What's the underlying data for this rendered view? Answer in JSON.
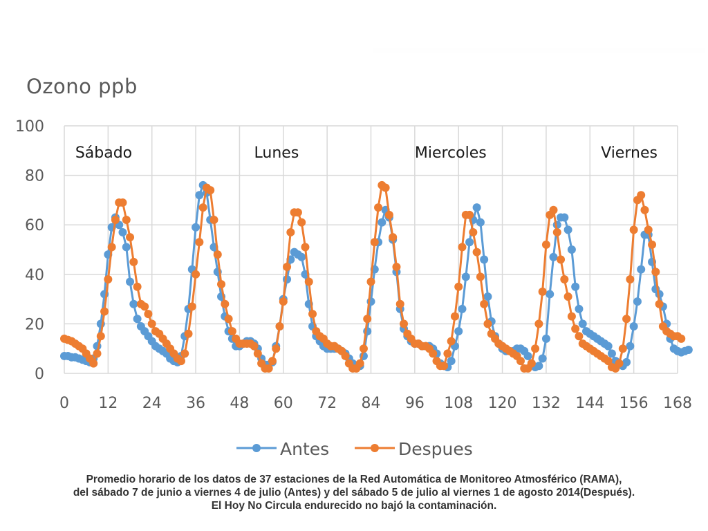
{
  "chart_data": {
    "type": "line",
    "title": "Ozono ppb",
    "xlabel": "",
    "ylabel": "Ozono ppb",
    "xlim": [
      0,
      168
    ],
    "ylim": [
      0,
      100
    ],
    "x_ticks": [
      0,
      12,
      24,
      36,
      48,
      60,
      72,
      84,
      96,
      108,
      120,
      132,
      144,
      156,
      168
    ],
    "y_ticks": [
      0,
      20,
      40,
      60,
      80,
      100
    ],
    "grid": true,
    "legend": "bottom",
    "annotations": [
      {
        "text": "Sábado",
        "x": 3
      },
      {
        "text": "Lunes",
        "x": 52
      },
      {
        "text": "Miercoles",
        "x": 96
      },
      {
        "text": "Viernes",
        "x": 147
      }
    ],
    "series": [
      {
        "name": "Antes",
        "color": "#5b9bd5",
        "values": [
          7,
          7,
          6.5,
          6.5,
          6,
          5.5,
          5,
          4.5,
          6,
          11,
          20,
          32,
          48,
          59,
          63,
          60,
          57,
          51,
          37,
          28,
          22,
          19,
          17,
          15,
          13,
          11,
          10,
          9,
          8,
          6,
          5,
          4.5,
          7,
          15,
          26,
          42,
          59,
          72,
          76,
          73,
          62,
          51,
          41,
          31,
          23,
          17,
          14,
          11,
          11,
          12,
          13,
          13,
          12,
          10,
          6,
          3.5,
          3.5,
          4.5,
          11,
          19,
          30,
          38,
          46,
          49,
          48,
          47,
          40,
          28,
          19,
          15,
          13,
          11,
          10,
          10,
          10,
          10,
          9,
          8,
          6,
          4,
          3,
          3,
          7,
          17,
          29,
          42,
          53,
          61,
          66,
          63,
          54,
          41,
          26,
          18,
          15,
          13,
          12,
          12,
          11,
          11,
          11,
          10,
          8,
          4,
          3,
          2.5,
          5,
          11,
          17,
          26,
          39,
          53,
          62,
          67,
          61,
          46,
          31,
          21,
          15,
          12,
          10,
          9,
          9,
          9,
          10,
          10,
          9,
          7,
          4,
          2.5,
          3,
          6,
          14,
          32,
          47,
          60,
          63,
          63,
          58,
          50,
          35,
          26,
          20,
          17,
          16,
          15,
          14,
          13,
          12,
          11,
          8,
          5,
          3.5,
          3,
          4.5,
          11,
          19,
          29,
          42,
          56,
          56,
          45,
          34,
          32,
          27,
          20,
          14,
          10,
          9,
          8.5,
          9,
          9.5
        ]
      },
      {
        "name": "Despues",
        "color": "#ed7d31",
        "values": [
          14,
          13.5,
          13,
          12,
          11,
          10,
          8,
          6,
          4,
          8,
          15,
          25,
          38,
          51,
          62,
          69,
          69,
          62,
          55,
          45,
          35,
          28,
          27,
          24,
          20,
          17,
          16,
          14,
          12,
          10,
          8,
          6,
          5,
          8,
          16,
          27,
          40,
          53,
          67,
          75,
          74,
          62,
          48,
          36,
          28,
          22,
          17,
          14,
          12,
          12,
          12,
          12,
          11,
          8,
          4,
          2,
          2,
          5,
          10,
          19,
          29,
          43,
          57,
          65,
          65,
          61,
          51,
          37,
          24,
          17,
          15,
          14,
          12,
          11,
          11,
          10,
          9,
          7,
          4,
          2,
          2,
          4,
          10,
          22,
          37,
          53,
          67,
          76,
          75,
          64,
          55,
          43,
          28,
          20,
          16,
          14,
          12,
          12,
          11,
          11,
          10,
          8,
          5,
          3,
          3,
          8,
          13,
          23,
          35,
          51,
          64,
          64,
          57,
          49,
          39,
          28,
          20,
          16,
          14,
          12,
          11,
          10,
          9,
          8,
          7,
          5,
          2,
          2,
          4,
          10,
          20,
          33,
          52,
          64,
          66,
          57,
          46,
          38,
          31,
          23,
          18,
          15,
          12,
          11,
          10,
          9,
          8,
          7,
          6,
          5,
          2.5,
          2,
          4,
          10,
          22,
          38,
          58,
          70,
          72,
          66,
          58,
          52,
          41,
          28,
          19,
          17,
          16,
          15,
          15,
          14
        ]
      }
    ]
  },
  "caption": {
    "line1": "Promedio horario de los datos de 37 estaciones de la Red Automática de Monitoreo Atmosférico (RAMA),",
    "line2": "del sábado 7 de junio a viernes 4 de julio (Antes) y del sábado 5 de julio al viernes 1 de agosto 2014(Después).",
    "line3": "El Hoy No Circula endurecido no bajó la contaminación."
  }
}
